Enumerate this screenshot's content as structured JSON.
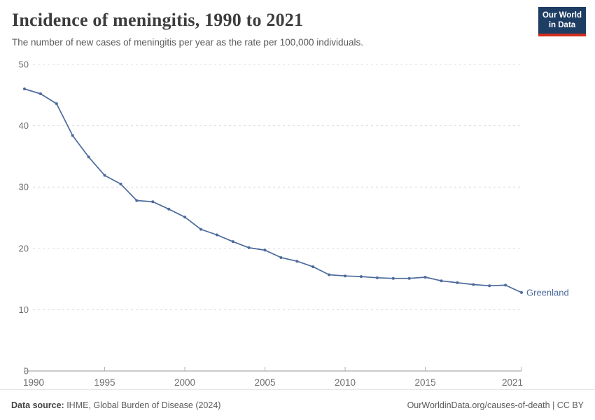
{
  "header": {
    "logo": {
      "line1": "Our World",
      "line2": "in Data"
    }
  },
  "chart_data": {
    "type": "line",
    "title": "Incidence of meningitis, 1990 to 2021",
    "subtitle": "The number of new cases of meningitis per year as the rate per 100,000 individuals.",
    "x": [
      1990,
      1991,
      1992,
      1993,
      1994,
      1995,
      1996,
      1997,
      1998,
      1999,
      2000,
      2001,
      2002,
      2003,
      2004,
      2005,
      2006,
      2007,
      2008,
      2009,
      2010,
      2011,
      2012,
      2013,
      2014,
      2015,
      2016,
      2017,
      2018,
      2019,
      2020,
      2021
    ],
    "series": [
      {
        "name": "Greenland",
        "values": [
          46.0,
          45.2,
          43.6,
          38.4,
          34.9,
          31.9,
          30.5,
          27.8,
          27.6,
          26.4,
          25.1,
          23.1,
          22.2,
          21.1,
          20.1,
          19.7,
          18.5,
          17.9,
          17.0,
          15.7,
          15.5,
          15.4,
          15.2,
          15.1,
          15.1,
          15.3,
          14.7,
          14.4,
          14.1,
          13.9,
          14.0,
          12.8
        ]
      }
    ],
    "end_label": "Greenland",
    "xticks": [
      1990,
      1995,
      2000,
      2005,
      2010,
      2015,
      2021
    ],
    "yticks": [
      0,
      10,
      20,
      30,
      40,
      50
    ],
    "xlim": [
      1990,
      2021
    ],
    "ylim": [
      0,
      50
    ],
    "grid": "horizontal-dashed",
    "legend_position": "line-end-label",
    "xlabel": "",
    "ylabel": ""
  },
  "footer": {
    "source_label": "Data source:",
    "source_text": " IHME, Global Burden of Disease (2024)",
    "link_text": "OurWorldinData.org/causes-of-death | CC BY"
  },
  "colors": {
    "line": "#4C6A9C",
    "grid": "#dcdcdc",
    "axis": "#999999",
    "tick_text": "#6e6e6e",
    "logo_bg": "#1d3d63",
    "logo_stripe": "#d12d1e"
  }
}
